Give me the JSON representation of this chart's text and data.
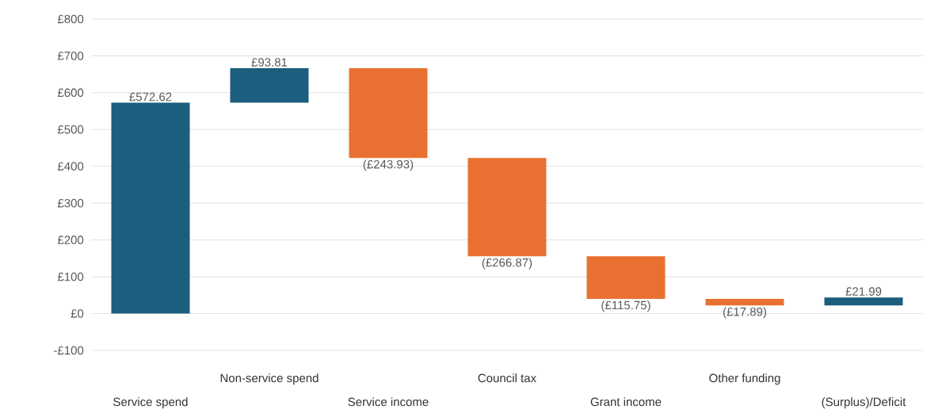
{
  "chart_data": {
    "type": "bar",
    "categories": [
      "Service spend",
      "Non-service spend",
      "Service income",
      "Council tax",
      "Grant income",
      "Other funding",
      "(Surplus)/Deficit"
    ],
    "values": [
      572.62,
      93.81,
      -243.93,
      -266.87,
      -115.75,
      -17.89,
      21.99
    ],
    "base": [
      0,
      572.62,
      666.43,
      422.5,
      155.63,
      39.88,
      21.99
    ],
    "colors": [
      "#1b5e7e",
      "#1b5e7e",
      "#e87131",
      "#e87131",
      "#e87131",
      "#e87131",
      "#1b5e7e"
    ],
    "value_labels": [
      "£572.62",
      "£93.81",
      "(£243.93)",
      "(£266.87)",
      "(£115.75)",
      "(£17.89)",
      "£21.99"
    ],
    "ylim": [
      -100,
      800
    ],
    "yticks": [
      {
        "value": -100,
        "label": "-£100"
      },
      {
        "value": 0,
        "label": "£0"
      },
      {
        "value": 100,
        "label": "£100"
      },
      {
        "value": 200,
        "label": "£200"
      },
      {
        "value": 300,
        "label": "£300"
      },
      {
        "value": 400,
        "label": "£400"
      },
      {
        "value": 500,
        "label": "£500"
      },
      {
        "value": 600,
        "label": "£600"
      },
      {
        "value": 700,
        "label": "£700"
      },
      {
        "value": 800,
        "label": "£800"
      }
    ],
    "grid": "y"
  }
}
